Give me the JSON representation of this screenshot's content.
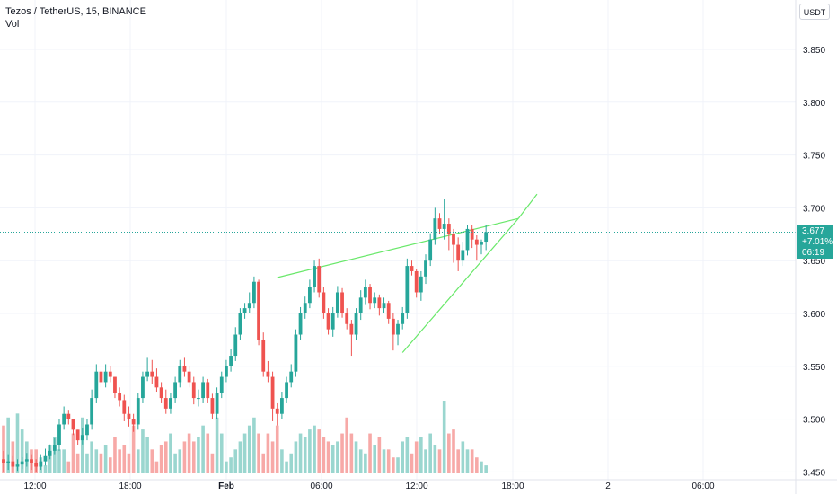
{
  "legend": {
    "symbol": "Tezos / TetherUS, 15, BINANCE",
    "volume": "Vol"
  },
  "currency": "USDT",
  "last_price": {
    "price": "3.677",
    "change": "+7.01%",
    "countdown": "06:19"
  },
  "colors": {
    "up": "#26a69a",
    "down": "#ef5350",
    "vol_up": "#9ad6cf",
    "vol_down": "#f7a9a7",
    "trendline": "#69e86a",
    "price_line": "#26a69a",
    "grid": "#f0f3fa"
  },
  "chart_data": {
    "type": "candlestick",
    "ylim": [
      3.45,
      3.89
    ],
    "y_ticks": [
      "3.850",
      "3.800",
      "3.750",
      "3.700",
      "3.650",
      "3.600",
      "3.550",
      "3.500",
      "3.450"
    ],
    "x_ticks": [
      "12:00",
      "18:00",
      "Feb",
      "06:00",
      "12:00",
      "18:00",
      "2",
      "06:00"
    ],
    "last_price": 3.677,
    "series": [
      {
        "kind": "ohlc",
        "open": [
          3.462,
          3.458,
          3.46,
          3.455,
          3.457,
          3.46,
          3.462,
          3.458,
          3.455,
          3.46,
          3.465,
          3.47,
          3.475,
          3.495,
          3.505,
          3.5,
          3.49,
          3.48,
          3.485,
          3.495,
          3.52,
          3.545,
          3.535,
          3.545,
          3.54,
          3.525,
          3.518,
          3.505,
          3.5,
          3.495,
          3.52,
          3.54,
          3.545,
          3.54,
          3.53,
          3.52,
          3.51,
          3.52,
          3.535,
          3.55,
          3.545,
          3.535,
          3.52,
          3.52,
          3.535,
          3.52,
          3.505,
          3.525,
          3.54,
          3.55,
          3.56,
          3.58,
          3.6,
          3.605,
          3.61,
          3.63,
          3.575,
          3.545,
          3.54,
          3.51,
          3.505,
          3.52,
          3.535,
          3.545,
          3.58,
          3.6,
          3.61,
          3.625,
          3.645,
          3.62,
          3.6,
          3.585,
          3.6,
          3.62,
          3.6,
          3.59,
          3.58,
          3.6,
          3.615,
          3.625,
          3.61,
          3.615,
          3.605,
          3.61,
          3.595,
          3.58,
          3.59,
          3.6,
          3.645,
          3.64,
          3.62,
          3.635,
          3.65,
          3.67,
          3.69,
          3.68,
          3.685,
          3.675,
          3.665,
          3.65,
          3.66,
          3.68,
          3.67,
          3.665,
          3.668
        ],
        "close": [
          3.458,
          3.46,
          3.455,
          3.457,
          3.46,
          3.462,
          3.458,
          3.455,
          3.46,
          3.465,
          3.47,
          3.475,
          3.495,
          3.505,
          3.5,
          3.49,
          3.48,
          3.485,
          3.495,
          3.52,
          3.545,
          3.535,
          3.545,
          3.54,
          3.525,
          3.518,
          3.505,
          3.5,
          3.495,
          3.52,
          3.54,
          3.545,
          3.54,
          3.53,
          3.52,
          3.51,
          3.52,
          3.535,
          3.55,
          3.545,
          3.535,
          3.52,
          3.52,
          3.535,
          3.52,
          3.505,
          3.525,
          3.54,
          3.55,
          3.56,
          3.58,
          3.6,
          3.605,
          3.61,
          3.63,
          3.575,
          3.545,
          3.54,
          3.51,
          3.505,
          3.52,
          3.535,
          3.545,
          3.58,
          3.6,
          3.61,
          3.625,
          3.645,
          3.62,
          3.6,
          3.585,
          3.6,
          3.62,
          3.6,
          3.59,
          3.58,
          3.6,
          3.615,
          3.625,
          3.61,
          3.615,
          3.605,
          3.61,
          3.595,
          3.58,
          3.59,
          3.6,
          3.645,
          3.64,
          3.62,
          3.635,
          3.65,
          3.67,
          3.69,
          3.68,
          3.685,
          3.675,
          3.665,
          3.65,
          3.66,
          3.68,
          3.67,
          3.665,
          3.668,
          3.677
        ],
        "high": [
          3.47,
          3.466,
          3.465,
          3.462,
          3.464,
          3.468,
          3.466,
          3.462,
          3.466,
          3.472,
          3.476,
          3.482,
          3.5,
          3.512,
          3.508,
          3.5,
          3.49,
          3.492,
          3.5,
          3.528,
          3.552,
          3.547,
          3.552,
          3.55,
          3.54,
          3.53,
          3.523,
          3.512,
          3.505,
          3.525,
          3.545,
          3.558,
          3.556,
          3.548,
          3.535,
          3.528,
          3.525,
          3.54,
          3.556,
          3.558,
          3.55,
          3.54,
          3.528,
          3.54,
          3.538,
          3.524,
          3.53,
          3.545,
          3.556,
          3.566,
          3.587,
          3.605,
          3.61,
          3.62,
          3.635,
          3.632,
          3.582,
          3.555,
          3.545,
          3.515,
          3.526,
          3.54,
          3.552,
          3.585,
          3.606,
          3.616,
          3.632,
          3.65,
          3.652,
          3.625,
          3.605,
          3.606,
          3.626,
          3.624,
          3.605,
          3.594,
          3.605,
          3.622,
          3.632,
          3.628,
          3.62,
          3.618,
          3.615,
          3.612,
          3.6,
          3.594,
          3.606,
          3.652,
          3.65,
          3.642,
          3.64,
          3.656,
          3.676,
          3.7,
          3.695,
          3.708,
          3.69,
          3.68,
          3.672,
          3.668,
          3.684,
          3.684,
          3.674,
          3.67,
          3.684
        ],
        "low": [
          3.45,
          3.452,
          3.45,
          3.451,
          3.453,
          3.455,
          3.452,
          3.45,
          3.452,
          3.456,
          3.462,
          3.466,
          3.47,
          3.49,
          3.495,
          3.485,
          3.475,
          3.476,
          3.48,
          3.49,
          3.515,
          3.53,
          3.53,
          3.535,
          3.52,
          3.512,
          3.498,
          3.493,
          3.488,
          3.49,
          3.515,
          3.536,
          3.533,
          3.526,
          3.515,
          3.505,
          3.505,
          3.515,
          3.53,
          3.54,
          3.53,
          3.514,
          3.512,
          3.515,
          3.515,
          3.5,
          3.5,
          3.52,
          3.535,
          3.545,
          3.555,
          3.575,
          3.595,
          3.6,
          3.605,
          3.57,
          3.54,
          3.535,
          3.498,
          3.494,
          3.5,
          3.515,
          3.53,
          3.54,
          3.575,
          3.595,
          3.605,
          3.62,
          3.615,
          3.595,
          3.58,
          3.578,
          3.596,
          3.596,
          3.585,
          3.56,
          3.575,
          3.594,
          3.608,
          3.604,
          3.605,
          3.598,
          3.6,
          3.59,
          3.565,
          3.57,
          3.585,
          3.595,
          3.636,
          3.615,
          3.612,
          3.628,
          3.645,
          3.665,
          3.675,
          3.67,
          3.66,
          3.648,
          3.64,
          3.645,
          3.655,
          3.662,
          3.65,
          3.656,
          3.66
        ]
      },
      {
        "kind": "volume",
        "values": [
          60,
          70,
          40,
          75,
          55,
          40,
          30,
          30,
          20,
          10,
          35,
          45,
          30,
          30,
          15,
          50,
          25,
          70,
          25,
          40,
          30,
          25,
          35,
          20,
          45,
          30,
          35,
          25,
          60,
          30,
          55,
          45,
          30,
          15,
          35,
          40,
          50,
          25,
          30,
          40,
          50,
          40,
          45,
          60,
          50,
          25,
          70,
          50,
          15,
          20,
          30,
          40,
          50,
          60,
          70,
          50,
          25,
          50,
          40,
          60,
          30,
          15,
          25,
          40,
          50,
          45,
          55,
          60,
          55,
          45,
          40,
          35,
          40,
          50,
          70,
          50,
          40,
          30,
          25,
          50,
          35,
          45,
          30,
          30,
          20,
          20,
          40,
          45,
          25,
          40,
          45,
          30,
          50,
          35,
          30,
          90,
          50,
          55,
          30,
          40,
          30,
          30,
          20,
          15,
          10
        ]
      }
    ],
    "trendlines": [
      {
        "x1": 59,
        "y1": 3.634,
        "x2": 111,
        "y2": 3.69
      },
      {
        "x1": 86,
        "y1": 3.563,
        "x2": 111,
        "y2": 3.69
      },
      {
        "x1": 111,
        "y1": 3.69,
        "x2": 115,
        "y2": 3.713
      }
    ]
  }
}
